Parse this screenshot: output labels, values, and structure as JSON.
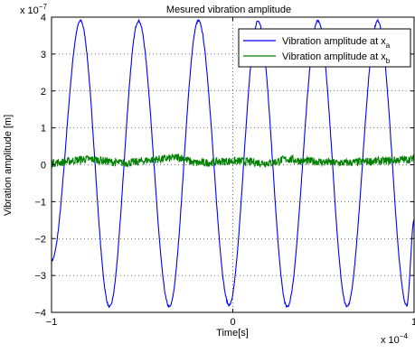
{
  "chart_data": {
    "type": "line",
    "title": "Mesured vibration amplitude",
    "xlabel": "Time[s]",
    "ylabel": "Vibration amplitude [m]",
    "x_exponent": "x 10",
    "x_exponent_power": "−4",
    "y_exponent": "x 10",
    "y_exponent_power": "−7",
    "xlim": [
      -1,
      1
    ],
    "ylim": [
      -4,
      4
    ],
    "xticks": [
      -1,
      0,
      1
    ],
    "xtick_labels": [
      "−1",
      "0",
      "1"
    ],
    "yticks": [
      -4,
      -3,
      -2,
      -1,
      0,
      1,
      2,
      3,
      4
    ],
    "ytick_labels": [
      "−4",
      "−3",
      "−2",
      "−1",
      "0",
      "1",
      "2",
      "3",
      "4"
    ],
    "grid": true,
    "legend_position": "top-right",
    "series": [
      {
        "name": "Vibration amplitude at x",
        "subscript": "a",
        "color": "#0000ff",
        "x": [
          -1.0,
          -0.84,
          -0.68,
          -0.52,
          -0.35,
          -0.19,
          -0.02,
          0.14,
          0.3,
          0.47,
          0.63,
          0.8,
          0.96,
          1.0
        ],
        "y": [
          -2.6,
          3.9,
          -3.85,
          3.9,
          -3.85,
          3.9,
          -3.8,
          3.9,
          -3.85,
          3.9,
          -3.85,
          3.9,
          -3.8,
          -1.5
        ]
      },
      {
        "name": "Vibration amplitude at x",
        "subscript": "b",
        "color": "#008000",
        "x": [
          -1.0,
          -0.8,
          -0.6,
          -0.4,
          -0.3,
          -0.2,
          0.0,
          0.2,
          0.3,
          0.4,
          0.6,
          0.8,
          1.0
        ],
        "y": [
          0.05,
          0.15,
          0.05,
          0.15,
          0.2,
          0.05,
          0.1,
          0.05,
          0.15,
          0.1,
          0.05,
          0.1,
          0.15
        ]
      }
    ]
  }
}
